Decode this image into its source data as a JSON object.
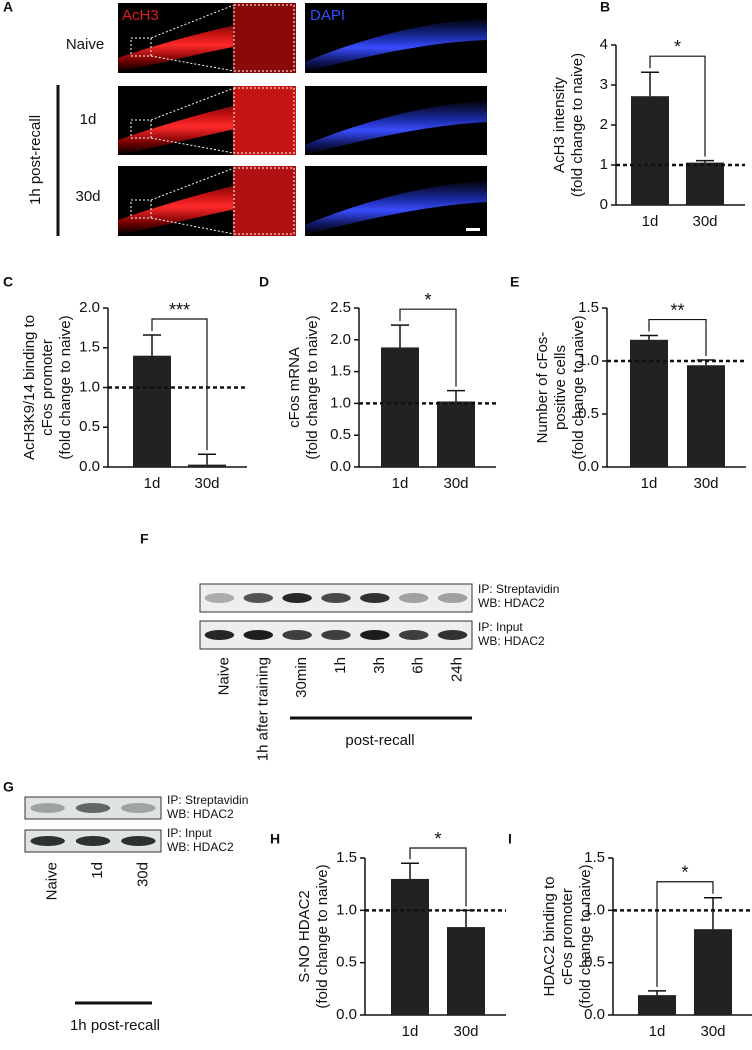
{
  "chart_data": [
    {
      "type": "bar",
      "panel": "B",
      "ylabel": [
        "AcH3 intensity",
        "(fold change to naive)"
      ],
      "categories": [
        "1d",
        "30d"
      ],
      "values": [
        2.72,
        1.06
      ],
      "errors": [
        0.6,
        0.05
      ],
      "color": "#222222",
      "ylim": [
        0,
        4
      ],
      "yticks": [
        0,
        1,
        2,
        3,
        4
      ],
      "reference": 1,
      "significance": "*"
    },
    {
      "type": "bar",
      "panel": "C",
      "ylabel": [
        "AcH3K9/14 binding to",
        "cFos promoter",
        "(fold change to naive)"
      ],
      "categories": [
        "1d",
        "30d"
      ],
      "values": [
        1.4,
        0.03
      ],
      "errors": [
        0.26,
        0.13
      ],
      "color": "#222222",
      "ylim": [
        0,
        2
      ],
      "yticks": [
        {
          "value": 0,
          "label": "0.0"
        },
        {
          "value": 0.5,
          "label": "0.5"
        },
        {
          "value": 1,
          "label": "1.0"
        },
        {
          "value": 1.5,
          "label": "1.5"
        },
        {
          "value": 2,
          "label": "2.0"
        }
      ],
      "reference": 1,
      "significance": "***"
    },
    {
      "type": "bar",
      "panel": "D",
      "ylabel": [
        "cFos mRNA",
        "(fold change to naive)"
      ],
      "categories": [
        "1d",
        "30d"
      ],
      "values": [
        1.88,
        1.03
      ],
      "errors": [
        0.35,
        0.17
      ],
      "color": "#222222",
      "ylim": [
        0,
        2.5
      ],
      "yticks": [
        {
          "value": 0,
          "label": "0.0"
        },
        {
          "value": 0.5,
          "label": "0.5"
        },
        {
          "value": 1,
          "label": "1.0"
        },
        {
          "value": 1.5,
          "label": "1.5"
        },
        {
          "value": 2,
          "label": "2.0"
        },
        {
          "value": 2.5,
          "label": "2.5"
        }
      ],
      "reference": 1,
      "significance": "*"
    },
    {
      "type": "bar",
      "panel": "E",
      "ylabel": [
        "Number of cFos-",
        "positive cells",
        "(fold change to naive)"
      ],
      "categories": [
        "1d",
        "30d"
      ],
      "values": [
        1.2,
        0.96
      ],
      "errors": [
        0.04,
        0.05
      ],
      "color": "#222222",
      "ylim": [
        0,
        1.5
      ],
      "yticks": [
        {
          "value": 0,
          "label": "0.0"
        },
        {
          "value": 0.5,
          "label": "0.5"
        },
        {
          "value": 1,
          "label": "1.0"
        },
        {
          "value": 1.5,
          "label": "1.5"
        }
      ],
      "reference": 1,
      "significance": "**"
    },
    {
      "type": "bar",
      "panel": "H",
      "ylabel": [
        "S-NO HDAC2",
        "(fold change to naive)"
      ],
      "categories": [
        "1d",
        "30d"
      ],
      "values": [
        1.3,
        0.84
      ],
      "errors": [
        0.15,
        0.16
      ],
      "color": "#222222",
      "ylim": [
        0,
        1.5
      ],
      "yticks": [
        {
          "value": 0,
          "label": "0.0"
        },
        {
          "value": 0.5,
          "label": "0.5"
        },
        {
          "value": 1,
          "label": "1.0"
        },
        {
          "value": 1.5,
          "label": "1.5"
        }
      ],
      "reference": 1,
      "significance": "*"
    },
    {
      "type": "bar",
      "panel": "I",
      "ylabel": [
        "HDAC2 binding to",
        "cFos promoter",
        "(fold change to naive)"
      ],
      "categories": [
        "1d",
        "30d"
      ],
      "values": [
        0.19,
        0.82
      ],
      "errors": [
        0.04,
        0.3
      ],
      "color": "#222222",
      "ylim": [
        0,
        1.5
      ],
      "yticks": [
        {
          "value": 0,
          "label": "0.0"
        },
        {
          "value": 0.5,
          "label": "0.5"
        },
        {
          "value": 1,
          "label": "1.0"
        },
        {
          "value": 1.5,
          "label": "1.5"
        }
      ],
      "reference": 1,
      "significance": "*"
    }
  ],
  "figure": {
    "panel_a": {
      "panel": "A",
      "stains": [
        "AcH3",
        "DAPI"
      ],
      "rows": [
        "Naive",
        "1d",
        "30d"
      ],
      "group": "1h post-recall"
    },
    "panel_f": {
      "panel": "F",
      "blots": [
        [
          "IP: Streptavidin",
          "WB: HDAC2"
        ],
        [
          "IP: Input",
          "WB: HDAC2"
        ]
      ],
      "lanes": [
        "Naive",
        "1h after training",
        "30min",
        "1h",
        "3h",
        "6h",
        "24h"
      ],
      "group": "post-recall"
    },
    "panel_g": {
      "panel": "G",
      "blots": [
        [
          "IP: Streptavidin",
          "WB: HDAC2"
        ],
        [
          "IP: Input",
          "WB: HDAC2"
        ]
      ],
      "lanes": [
        "Naive",
        "1d",
        "30d"
      ],
      "group": "1h post-recall"
    }
  }
}
